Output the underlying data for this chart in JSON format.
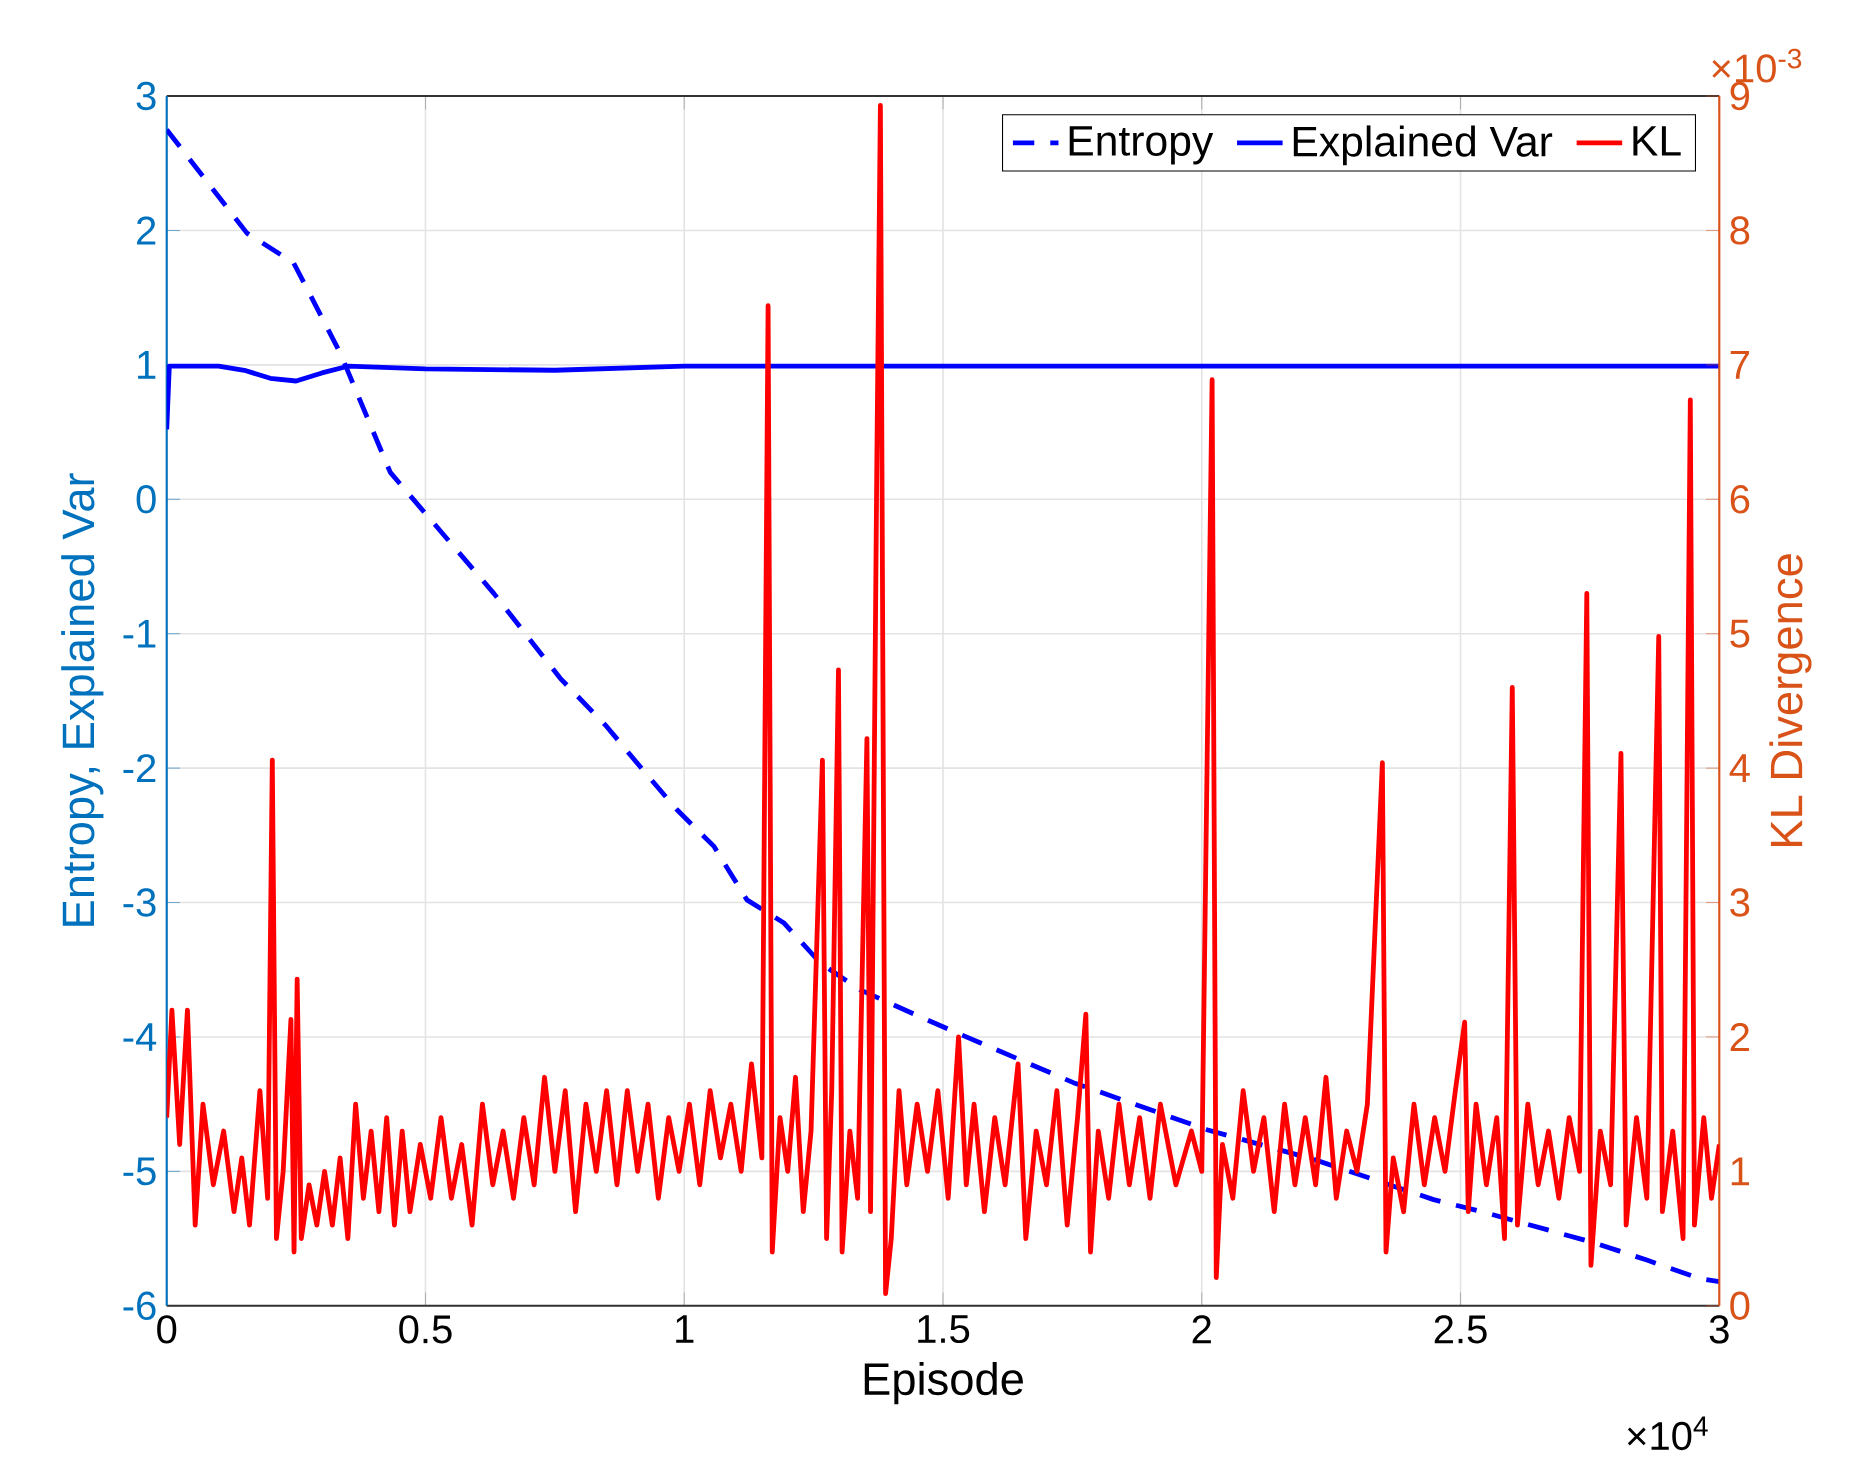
{
  "chart_data": {
    "type": "line",
    "xlabel": "Episode",
    "ylabel": "Entropy, Explained Var",
    "y2label": "KL Divergence",
    "annotations": [
      "×10$^{4}$",
      "×10$^{-3}$"
    ],
    "xlim": [
      0,
      3
    ],
    "xticks": [
      0,
      0.5,
      1,
      1.5,
      2,
      2.5,
      3
    ],
    "ylim": [
      -6,
      3
    ],
    "yticks": [
      -6,
      -5,
      -4,
      -3,
      -2,
      -1,
      0,
      1,
      2,
      3
    ],
    "y2lim": [
      0,
      9
    ],
    "y2ticks": [
      0,
      1,
      2,
      3,
      4,
      5,
      6,
      7,
      8,
      9
    ],
    "grid": true,
    "legend": "top right",
    "series": [
      {
        "name": "Entropy",
        "color": "#0000ff",
        "line_style": "dashed",
        "x": [
          0,
          0.155,
          0.245,
          0.335,
          0.432,
          0.503,
          0.632,
          0.76,
          0.85,
          0.915,
          0.986,
          1.057,
          1.121,
          1.192,
          1.263,
          1.34,
          1.456,
          1.533,
          1.649,
          1.752,
          2.01,
          2.216,
          2.448,
          2.551,
          2.757,
          2.86,
          2.964,
          3.0
        ],
        "values": [
          2.75,
          1.98,
          1.76,
          1.09,
          0.2,
          -0.12,
          -0.7,
          -1.33,
          -1.69,
          -1.99,
          -2.31,
          -2.58,
          -2.98,
          -3.15,
          -3.45,
          -3.65,
          -3.85,
          -3.98,
          -4.17,
          -4.34,
          -4.69,
          -4.91,
          -5.21,
          -5.31,
          -5.53,
          -5.66,
          -5.8,
          -5.82
        ]
      },
      {
        "name": "Explained Var",
        "color": "#0000ff",
        "line_style": "solid",
        "x": [
          0,
          0.005,
          0.1,
          0.15,
          0.2,
          0.25,
          0.3,
          0.35,
          0.5,
          0.75,
          1.0,
          3.0
        ],
        "values": [
          0.52,
          0.99,
          0.99,
          0.96,
          0.9,
          0.88,
          0.94,
          0.99,
          0.97,
          0.96,
          0.99,
          0.99
        ]
      },
      {
        "name": "KL",
        "color": "#ff0000",
        "line_style": "solid",
        "axis": "y2",
        "x": [
          0,
          0.01,
          0.025,
          0.04,
          0.055,
          0.07,
          0.09,
          0.11,
          0.13,
          0.145,
          0.16,
          0.18,
          0.195,
          0.204,
          0.212,
          0.225,
          0.24,
          0.246,
          0.252,
          0.26,
          0.275,
          0.29,
          0.305,
          0.32,
          0.335,
          0.35,
          0.365,
          0.38,
          0.395,
          0.41,
          0.425,
          0.44,
          0.455,
          0.47,
          0.49,
          0.51,
          0.53,
          0.55,
          0.57,
          0.59,
          0.61,
          0.63,
          0.65,
          0.67,
          0.69,
          0.71,
          0.73,
          0.75,
          0.77,
          0.79,
          0.81,
          0.83,
          0.85,
          0.87,
          0.89,
          0.91,
          0.93,
          0.95,
          0.97,
          0.99,
          1.01,
          1.03,
          1.05,
          1.07,
          1.09,
          1.11,
          1.13,
          1.15,
          1.162,
          1.17,
          1.185,
          1.2,
          1.215,
          1.23,
          1.245,
          1.267,
          1.275,
          1.285,
          1.298,
          1.305,
          1.32,
          1.335,
          1.353,
          1.36,
          1.372,
          1.379,
          1.389,
          1.4,
          1.415,
          1.43,
          1.45,
          1.47,
          1.49,
          1.51,
          1.53,
          1.545,
          1.56,
          1.58,
          1.6,
          1.62,
          1.645,
          1.66,
          1.68,
          1.7,
          1.72,
          1.74,
          1.76,
          1.776,
          1.785,
          1.8,
          1.82,
          1.84,
          1.86,
          1.88,
          1.9,
          1.92,
          1.95,
          1.98,
          2.0,
          2.02,
          2.028,
          2.04,
          2.06,
          2.08,
          2.1,
          2.12,
          2.14,
          2.16,
          2.18,
          2.2,
          2.22,
          2.24,
          2.26,
          2.28,
          2.3,
          2.32,
          2.349,
          2.356,
          2.37,
          2.39,
          2.41,
          2.43,
          2.45,
          2.47,
          2.49,
          2.508,
          2.515,
          2.53,
          2.55,
          2.57,
          2.585,
          2.6,
          2.61,
          2.63,
          2.65,
          2.67,
          2.69,
          2.71,
          2.73,
          2.744,
          2.752,
          2.77,
          2.79,
          2.81,
          2.82,
          2.84,
          2.86,
          2.883,
          2.89,
          2.91,
          2.93,
          2.944,
          2.952,
          2.97,
          2.985,
          3.0
        ],
        "values": [
          1.4,
          2.2,
          1.2,
          2.2,
          0.6,
          1.5,
          0.9,
          1.3,
          0.7,
          1.1,
          0.6,
          1.6,
          0.8,
          4.06,
          0.5,
          1.0,
          2.13,
          0.4,
          2.43,
          0.5,
          0.9,
          0.6,
          1.0,
          0.6,
          1.1,
          0.5,
          1.5,
          0.8,
          1.3,
          0.7,
          1.4,
          0.6,
          1.3,
          0.7,
          1.2,
          0.8,
          1.4,
          0.8,
          1.2,
          0.6,
          1.5,
          0.9,
          1.3,
          0.8,
          1.4,
          0.9,
          1.7,
          1.0,
          1.6,
          0.7,
          1.5,
          1.0,
          1.6,
          0.9,
          1.6,
          1.0,
          1.5,
          0.8,
          1.4,
          1.0,
          1.5,
          0.9,
          1.6,
          1.1,
          1.5,
          1.0,
          1.8,
          1.1,
          7.44,
          0.4,
          1.4,
          1.0,
          1.7,
          0.7,
          1.3,
          4.06,
          0.5,
          1.6,
          4.73,
          0.4,
          1.3,
          0.8,
          4.22,
          0.7,
          6.22,
          8.93,
          0.09,
          0.5,
          1.6,
          0.9,
          1.5,
          1.0,
          1.6,
          0.8,
          2.0,
          0.9,
          1.5,
          0.7,
          1.4,
          0.9,
          1.8,
          0.5,
          1.3,
          0.9,
          1.6,
          0.6,
          1.4,
          2.17,
          0.4,
          1.3,
          0.8,
          1.5,
          0.9,
          1.4,
          0.8,
          1.5,
          0.9,
          1.3,
          1.0,
          6.89,
          0.21,
          1.2,
          0.8,
          1.6,
          1.0,
          1.4,
          0.7,
          1.5,
          0.9,
          1.4,
          0.9,
          1.7,
          0.8,
          1.3,
          1.0,
          1.5,
          4.04,
          0.4,
          1.1,
          0.7,
          1.5,
          0.9,
          1.4,
          1.0,
          1.6,
          2.11,
          0.7,
          1.5,
          0.9,
          1.4,
          0.5,
          4.6,
          0.6,
          1.5,
          0.9,
          1.3,
          0.8,
          1.4,
          1.0,
          5.3,
          0.3,
          1.3,
          0.9,
          4.11,
          0.6,
          1.4,
          0.8,
          4.98,
          0.7,
          1.3,
          0.5,
          6.74,
          0.6,
          1.4,
          0.8,
          1.2
        ]
      }
    ]
  }
}
